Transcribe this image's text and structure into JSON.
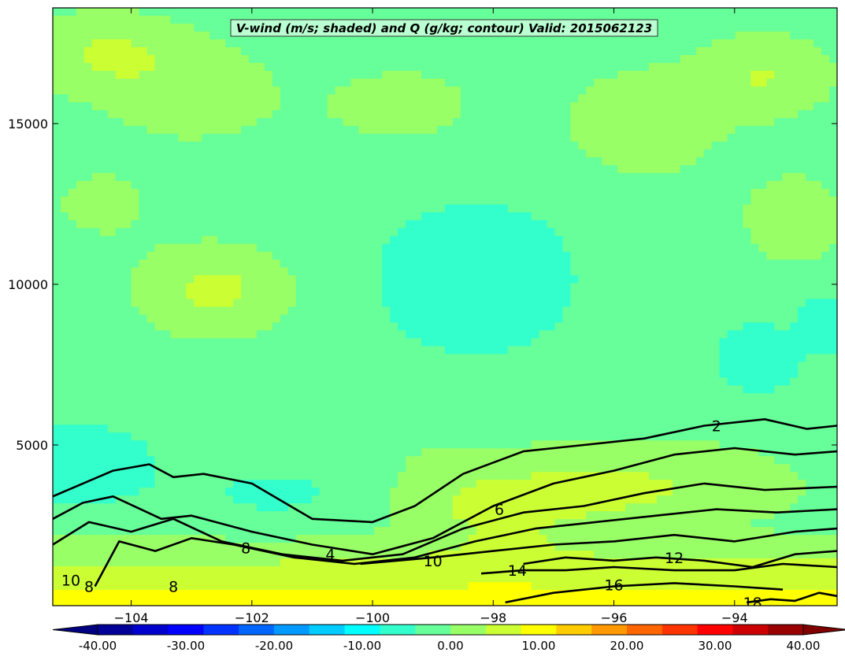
{
  "chart_data": {
    "type": "heatmap",
    "title": "V-wind (m/s; shaded) and Q (g/kg; contour) Valid: 2015062123",
    "xlabel": "",
    "ylabel": "",
    "xlim": [
      -105.3,
      -92.3
    ],
    "ylim": [
      0,
      18600
    ],
    "x_ticks": [
      -104,
      -102,
      -100,
      -98,
      -96,
      -94
    ],
    "x_tick_labels": [
      "−104",
      "−102",
      "−100",
      "−98",
      "−96",
      "−94"
    ],
    "y_ticks": [
      5000,
      10000,
      15000
    ],
    "y_tick_labels": [
      "5000",
      "10000",
      "15000"
    ],
    "colorbar": {
      "min": -40,
      "max": 40,
      "step": 4,
      "extend": "both",
      "ticks": [
        -40,
        -30,
        -20,
        -10,
        0,
        10,
        20,
        30,
        40
      ],
      "tick_labels": [
        "-40.00",
        "-30.00",
        "-20.00",
        "-10.00",
        "0.00",
        "10.00",
        "20.00",
        "30.00",
        "40.00"
      ],
      "colormap": "jet"
    },
    "shaded_field": {
      "name": "V-wind (m/s)",
      "background_value": -2,
      "anomalies": [
        {
          "x": -104.5,
          "y": 17200,
          "sx": 0.9,
          "sy": 900,
          "v": 6
        },
        {
          "x": -103.0,
          "y": 16000,
          "sx": 1.0,
          "sy": 1200,
          "v": 4
        },
        {
          "x": -99.5,
          "y": 15500,
          "sx": 1.2,
          "sy": 1200,
          "v": 3
        },
        {
          "x": -95.5,
          "y": 15000,
          "sx": 0.9,
          "sy": 1200,
          "v": 5
        },
        {
          "x": -93.5,
          "y": 16500,
          "sx": 0.8,
          "sy": 900,
          "v": 6
        },
        {
          "x": -93.0,
          "y": 12000,
          "sx": 0.6,
          "sy": 1000,
          "v": 5
        },
        {
          "x": -102.6,
          "y": 9800,
          "sx": 0.9,
          "sy": 1000,
          "v": 7
        },
        {
          "x": -104.5,
          "y": 12500,
          "sx": 0.7,
          "sy": 900,
          "v": 3
        },
        {
          "x": -98.3,
          "y": 10200,
          "sx": 1.4,
          "sy": 2000,
          "v": -4
        },
        {
          "x": -93.6,
          "y": 7700,
          "sx": 0.45,
          "sy": 700,
          "v": -6
        },
        {
          "x": -92.5,
          "y": 8800,
          "sx": 0.3,
          "sy": 600,
          "v": -6
        },
        {
          "x": -104.8,
          "y": 4400,
          "sx": 0.9,
          "sy": 900,
          "v": -5
        },
        {
          "x": -100.5,
          "y": 5200,
          "sx": 1.5,
          "sy": 800,
          "v": 2
        },
        {
          "x": -95.5,
          "y": 3700,
          "sx": 1.8,
          "sy": 1000,
          "v": 6
        },
        {
          "x": -98.0,
          "y": 3000,
          "sx": 1.2,
          "sy": 900,
          "v": 6
        },
        {
          "x": -101.5,
          "y": 3600,
          "sx": 1.0,
          "sy": 700,
          "v": -3
        }
      ],
      "low_level_gradient": {
        "value_at_ground": 11,
        "depth_m": 2500
      }
    },
    "contour_field": {
      "name": "Q (g/kg)",
      "levels": [
        2,
        4,
        6,
        8,
        10,
        12,
        14,
        16,
        18
      ],
      "lines": [
        {
          "level": 2,
          "x": [
            -105.3,
            -104.8,
            -104.3,
            -103.7,
            -103.3,
            -102.8,
            -102.0,
            -101.0,
            -100.0,
            -99.3,
            -98.5,
            -97.5,
            -96.5,
            -95.5,
            -94.5,
            -93.5,
            -92.8,
            -92.3
          ],
          "y": [
            3400,
            3800,
            4200,
            4400,
            4000,
            4100,
            3800,
            2700,
            2600,
            3100,
            4100,
            4800,
            5000,
            5200,
            5600,
            5800,
            5500,
            5600
          ]
        },
        {
          "level": 4,
          "x": [
            -105.3,
            -104.8,
            -104.3,
            -103.5,
            -103.0,
            -102.0,
            -101.0,
            -100.0,
            -99.0,
            -98.0,
            -97.0,
            -96.0,
            -95.0,
            -94.0,
            -93.0,
            -92.3
          ],
          "y": [
            2700,
            3200,
            3400,
            2700,
            2800,
            2300,
            1900,
            1600,
            2100,
            3100,
            3800,
            4200,
            4700,
            4900,
            4700,
            4800
          ]
        },
        {
          "level": 6,
          "x": [
            -105.3,
            -104.7,
            -104.0,
            -103.3,
            -102.5,
            -101.5,
            -100.5,
            -99.5,
            -98.5,
            -97.5,
            -96.5,
            -95.5,
            -94.5,
            -93.5,
            -92.3
          ],
          "y": [
            1900,
            2600,
            2300,
            2700,
            2000,
            1600,
            1400,
            1600,
            2400,
            2900,
            3100,
            3500,
            3800,
            3600,
            3700
          ]
        },
        {
          "level": 8,
          "x": [
            -104.6,
            -104.2,
            -103.6,
            -103.0,
            -102.3,
            -101.3,
            -100.3,
            -99.3,
            -98.3,
            -97.3,
            -96.3,
            -95.3,
            -94.3,
            -93.3,
            -92.3
          ],
          "y": [
            600,
            2000,
            1700,
            2100,
            1900,
            1500,
            1300,
            1500,
            2000,
            2400,
            2600,
            2800,
            3000,
            2900,
            3000
          ]
        },
        {
          "level": 10,
          "x": [
            -100.2,
            -99.6,
            -99.0,
            -98.0,
            -97.0,
            -96.0,
            -95.0,
            -94.0,
            -93.0,
            -92.3
          ],
          "y": [
            1300,
            1400,
            1500,
            1700,
            1900,
            2000,
            2200,
            2000,
            2300,
            2400
          ]
        },
        {
          "level": 12,
          "x": [
            -97.5,
            -96.8,
            -96.0,
            -95.3,
            -94.5,
            -93.7,
            -93.0,
            -92.3
          ],
          "y": [
            1300,
            1500,
            1400,
            1500,
            1400,
            1200,
            1600,
            1700
          ]
        },
        {
          "level": 14,
          "x": [
            -98.2,
            -97.5,
            -96.8,
            -96.0,
            -95.0,
            -94.0,
            -93.2,
            -92.3
          ],
          "y": [
            1000,
            1100,
            1100,
            1200,
            1100,
            1100,
            1300,
            1200
          ]
        },
        {
          "level": 16,
          "x": [
            -97.8,
            -97.0,
            -96.0,
            -95.0,
            -94.0,
            -93.2
          ],
          "y": [
            100,
            400,
            600,
            700,
            600,
            500
          ]
        },
        {
          "level": 18,
          "x": [
            -93.8,
            -93.4,
            -93.0,
            -92.6,
            -92.3
          ],
          "y": [
            100,
            200,
            150,
            400,
            300
          ]
        }
      ],
      "labels": [
        {
          "text": "2",
          "x": -94.3,
          "y": 5600
        },
        {
          "text": "6",
          "x": -97.9,
          "y": 3000
        },
        {
          "text": "8",
          "x": -102.1,
          "y": 1800
        },
        {
          "text": "4",
          "x": -100.7,
          "y": 1600
        },
        {
          "text": "10",
          "x": -99.0,
          "y": 1400
        },
        {
          "text": "12",
          "x": -95.0,
          "y": 1500
        },
        {
          "text": "14",
          "x": -97.6,
          "y": 1100
        },
        {
          "text": "16",
          "x": -96.0,
          "y": 650
        },
        {
          "text": "18",
          "x": -93.7,
          "y": 100
        },
        {
          "text": "10",
          "x": -105.0,
          "y": 800
        },
        {
          "text": "8",
          "x": -104.7,
          "y": 600
        },
        {
          "text": "8",
          "x": -103.3,
          "y": 600
        }
      ]
    },
    "grid": false
  }
}
